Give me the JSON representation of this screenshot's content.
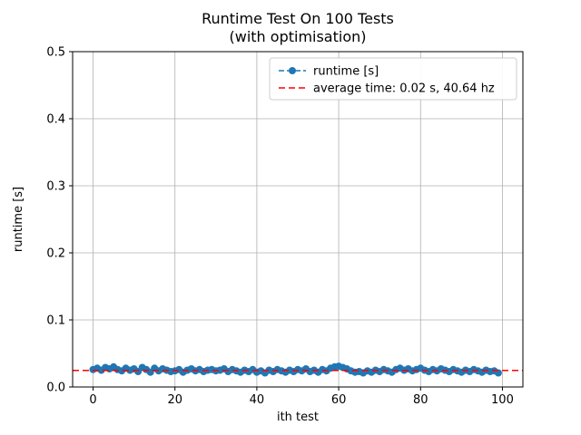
{
  "figure": {
    "title": "Runtime Test On 100 Tests",
    "subtitle": "(with optimisation)"
  },
  "chart_data": {
    "type": "line",
    "title": "Runtime Test On 100 Tests",
    "subtitle": "(with optimisation)",
    "xlabel": "ith test",
    "ylabel": "runtime [s]",
    "xlim": [
      -5,
      105
    ],
    "ylim": [
      0,
      0.5
    ],
    "xticks": [
      0,
      20,
      40,
      60,
      80,
      100
    ],
    "xtick_labels": [
      "0",
      "20",
      "40",
      "60",
      "80",
      "100"
    ],
    "yticks": [
      0,
      0.1,
      0.2,
      0.3,
      0.4,
      0.5
    ],
    "ytick_labels": [
      "0.0",
      "0.1",
      "0.2",
      "0.3",
      "0.4",
      "0.5"
    ],
    "grid": true,
    "grid_color": "#b0b0b0",
    "legend": {
      "position": "upper right",
      "entries": [
        {
          "label": "runtime [s]",
          "color": "#1f77b4",
          "style": "dashed-marker"
        },
        {
          "label": "average time: 0.02 s, 40.64 hz",
          "color": "#ff0000",
          "style": "dashed"
        }
      ]
    },
    "series": [
      {
        "name": "runtime [s]",
        "type": "line-markers",
        "color": "#1f77b4",
        "x_start": 0,
        "x_step": 1,
        "values": [
          0.026,
          0.028,
          0.025,
          0.029,
          0.027,
          0.03,
          0.026,
          0.024,
          0.028,
          0.025,
          0.027,
          0.023,
          0.029,
          0.026,
          0.022,
          0.028,
          0.024,
          0.027,
          0.025,
          0.023,
          0.024,
          0.026,
          0.022,
          0.025,
          0.027,
          0.024,
          0.026,
          0.023,
          0.025,
          0.026,
          0.024,
          0.025,
          0.027,
          0.023,
          0.026,
          0.024,
          0.022,
          0.025,
          0.023,
          0.026,
          0.022,
          0.024,
          0.021,
          0.025,
          0.023,
          0.026,
          0.024,
          0.022,
          0.025,
          0.023,
          0.026,
          0.024,
          0.027,
          0.023,
          0.025,
          0.022,
          0.026,
          0.024,
          0.028,
          0.03,
          0.031,
          0.029,
          0.027,
          0.024,
          0.022,
          0.023,
          0.021,
          0.024,
          0.022,
          0.025,
          0.023,
          0.026,
          0.024,
          0.022,
          0.026,
          0.028,
          0.025,
          0.027,
          0.024,
          0.026,
          0.028,
          0.025,
          0.023,
          0.026,
          0.024,
          0.027,
          0.025,
          0.023,
          0.026,
          0.024,
          0.022,
          0.025,
          0.023,
          0.026,
          0.024,
          0.022,
          0.025,
          0.023,
          0.024,
          0.021
        ]
      },
      {
        "name": "average time: 0.02 s, 40.64 hz",
        "type": "hline",
        "color": "#ff0000",
        "value": 0.0246
      }
    ]
  }
}
